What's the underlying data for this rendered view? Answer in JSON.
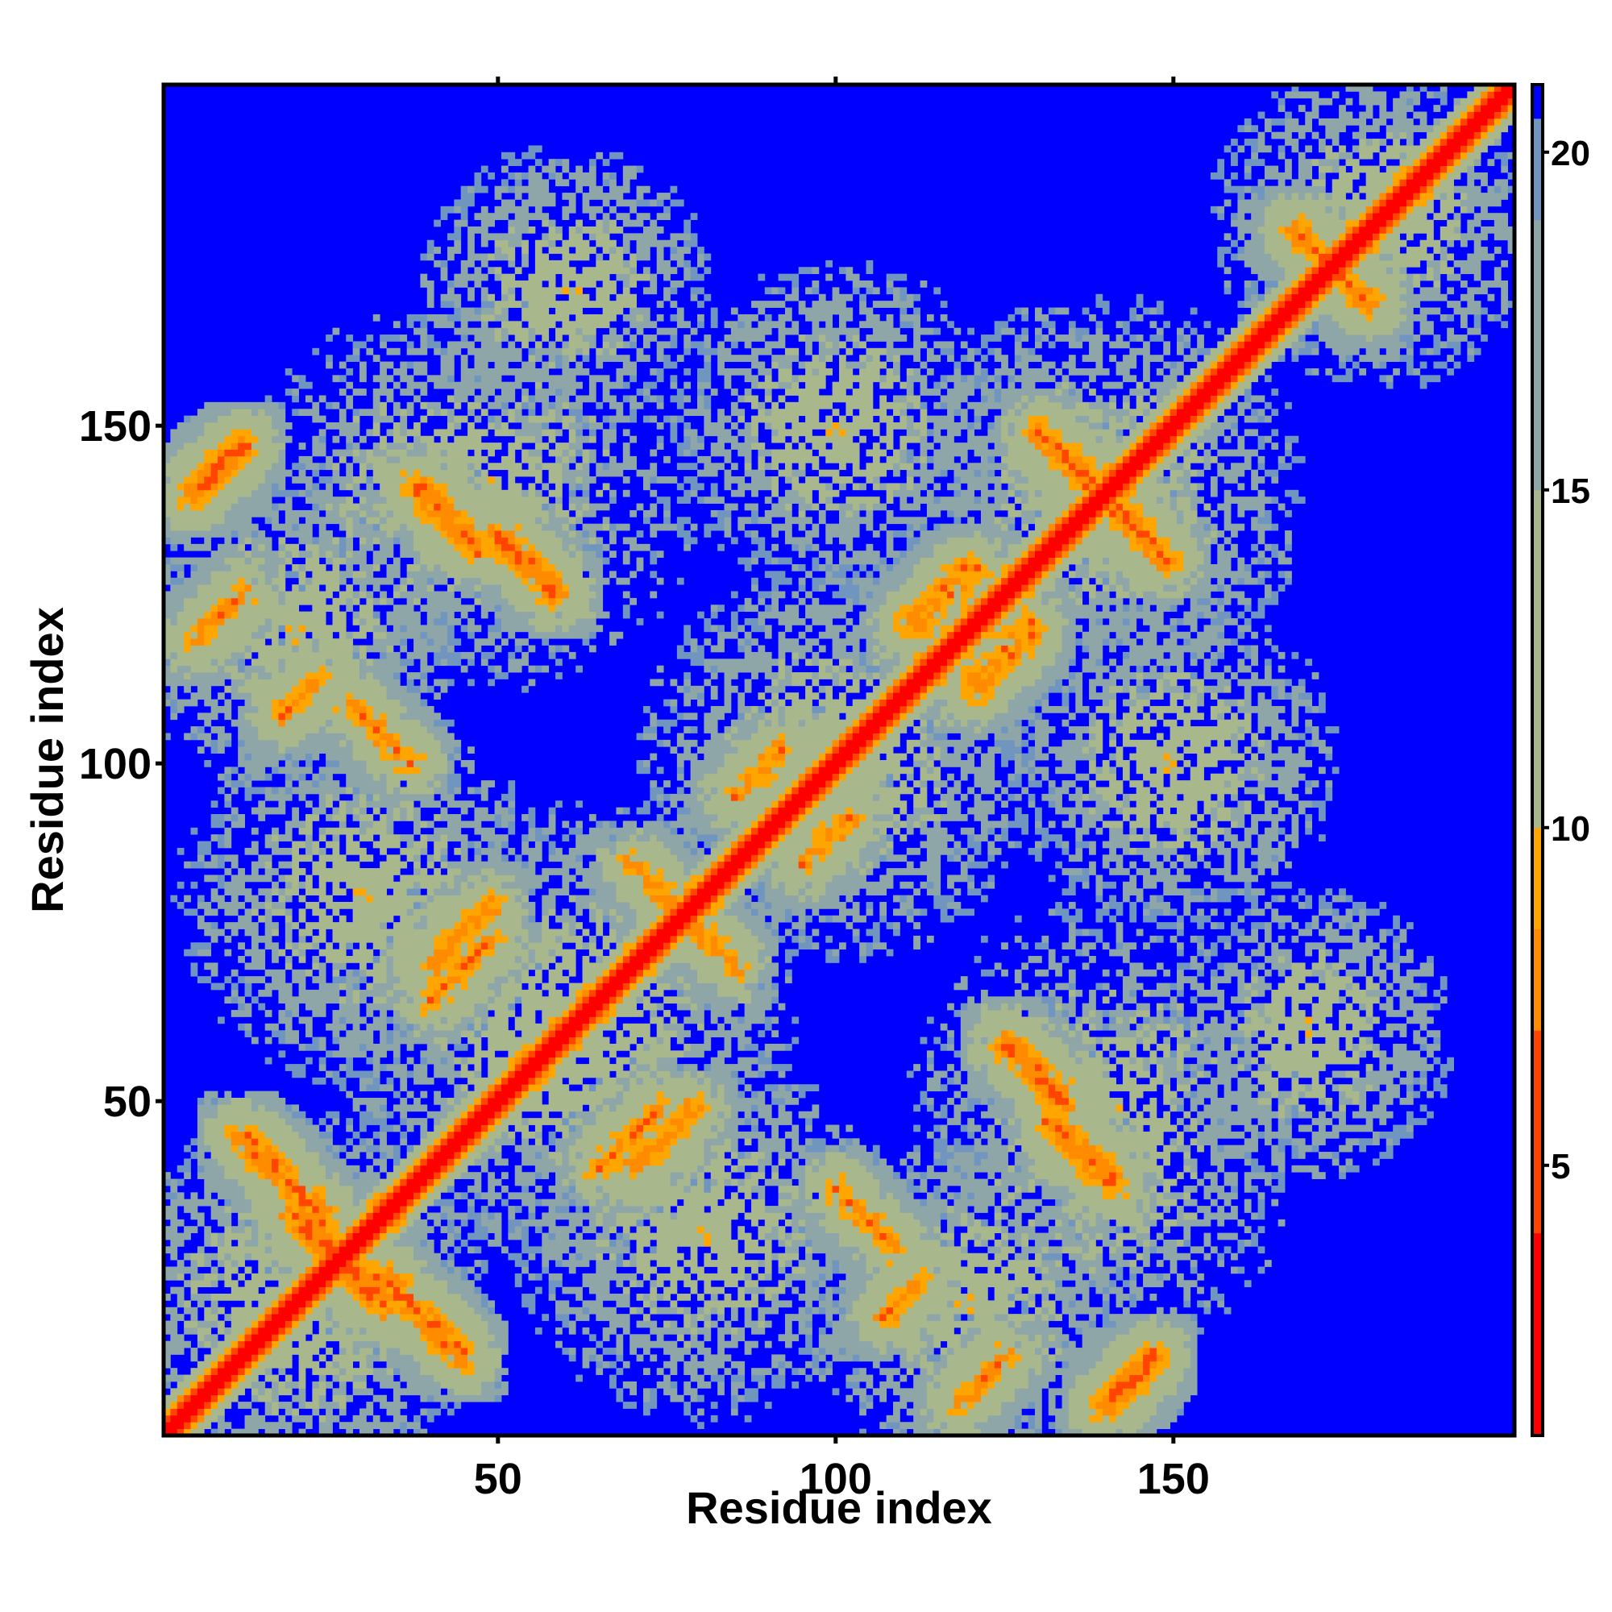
{
  "chart_data": {
    "type": "heatmap",
    "title": "",
    "xlabel": "Residue index",
    "ylabel": "Residue index",
    "xlim": [
      1,
      200
    ],
    "ylim": [
      1,
      200
    ],
    "x_ticks": [
      50,
      100,
      150
    ],
    "y_ticks": [
      50,
      100,
      150
    ],
    "x_tick_labels": [
      "50",
      "100",
      "150"
    ],
    "y_tick_labels": [
      "50",
      "100",
      "150"
    ],
    "colorbar": {
      "range": [
        1,
        21
      ],
      "ticks": [
        5,
        10,
        15,
        20
      ],
      "tick_labels": [
        "5",
        "10",
        "15",
        "20"
      ],
      "colors": [
        {
          "value": 1,
          "color": "#ff0000"
        },
        {
          "value": 4,
          "color": "#ff4500"
        },
        {
          "value": 7,
          "color": "#ff8c00"
        },
        {
          "value": 8.5,
          "color": "#ffa500"
        },
        {
          "value": 10,
          "color": "#a9b88c"
        },
        {
          "value": 15,
          "color": "#8fa6a8"
        },
        {
          "value": 19,
          "color": "#7096c0"
        },
        {
          "value": 20.5,
          "color": "#0000ff"
        }
      ]
    },
    "diagonal_band": {
      "from": 1,
      "to": 200,
      "value": 1
    },
    "contact_features": [
      {
        "type": "antiparallel",
        "i_start": 12,
        "j_start": 33,
        "length": 13,
        "value": 5
      },
      {
        "type": "antiparallel",
        "i_start": 20,
        "j_start": 22,
        "length": 12,
        "value": 5
      },
      {
        "type": "antiparallel",
        "i_start": 38,
        "j_start": 132,
        "length": 10,
        "value": 5
      },
      {
        "type": "antiparallel",
        "i_start": 70,
        "j_start": 78,
        "length": 8,
        "value": 6
      },
      {
        "type": "antiparallel",
        "i_start": 100,
        "j_start": 28,
        "length": 10,
        "value": 6
      },
      {
        "type": "antiparallel",
        "i_start": 125,
        "j_start": 50,
        "length": 10,
        "value": 5
      },
      {
        "type": "antiparallel",
        "i_start": 130,
        "j_start": 140,
        "length": 10,
        "value": 5
      },
      {
        "type": "antiparallel",
        "i_start": 168,
        "j_start": 168,
        "length": 12,
        "value": 6
      },
      {
        "type": "parallel",
        "i_start": 40,
        "j_start": 70,
        "length": 10,
        "value": 6
      },
      {
        "type": "parallel",
        "i_start": 65,
        "j_start": 40,
        "length": 10,
        "value": 6
      },
      {
        "type": "parallel",
        "i_start": 85,
        "j_start": 95,
        "length": 8,
        "value": 6
      },
      {
        "type": "parallel",
        "i_start": 110,
        "j_start": 120,
        "length": 10,
        "value": 6
      },
      {
        "type": "parallel",
        "i_start": 120,
        "j_start": 112,
        "length": 10,
        "value": 6
      },
      {
        "type": "parallel",
        "i_start": 140,
        "j_start": 5,
        "length": 8,
        "value": 5
      },
      {
        "type": "parallel",
        "i_start": 118,
        "j_start": 5,
        "length": 8,
        "value": 6
      },
      {
        "type": "parallel",
        "i_start": 107,
        "j_start": 18,
        "length": 6,
        "value": 6
      },
      {
        "type": "parallel",
        "i_start": 140,
        "j_start": 5,
        "length": 8,
        "value": 5
      }
    ],
    "colormap_stops": {
      "blue": "#0000ff",
      "far": "#7096c0",
      "mid": "#8fa6a8",
      "near": "#a9b88c",
      "orange": "#ffa500",
      "red": "#ff0000"
    }
  }
}
